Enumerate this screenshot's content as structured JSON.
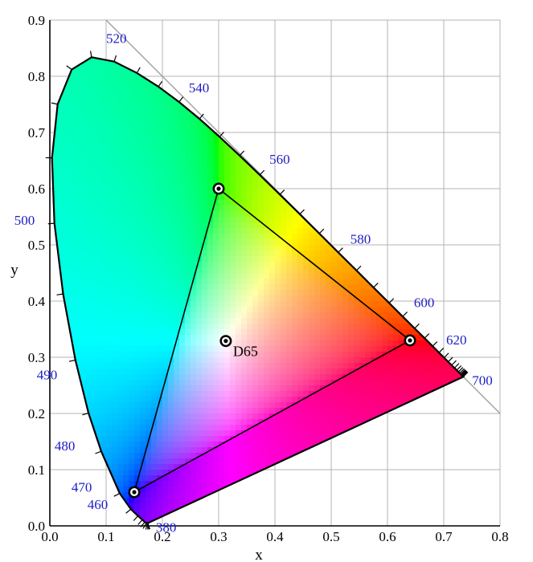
{
  "chart_data": {
    "type": "scatter",
    "title": "",
    "xlabel": "x",
    "ylabel": "y",
    "xlim": [
      0.0,
      0.8
    ],
    "ylim": [
      0.0,
      0.9
    ],
    "xticks": [
      "0.0",
      "0.1",
      "0.2",
      "0.3",
      "0.4",
      "0.5",
      "0.6",
      "0.7",
      "0.8"
    ],
    "yticks": [
      "0.0",
      "0.1",
      "0.2",
      "0.3",
      "0.4",
      "0.5",
      "0.6",
      "0.7",
      "0.8",
      "0.9"
    ],
    "grid": true,
    "wavelength_label_color": "#1c1cc8",
    "spectral_locus": [
      [
        0.1741,
        0.005
      ],
      [
        0.1738,
        0.0049
      ],
      [
        0.1733,
        0.0048
      ],
      [
        0.1726,
        0.0048
      ],
      [
        0.1714,
        0.0051
      ],
      [
        0.1689,
        0.0069
      ],
      [
        0.1644,
        0.0109
      ],
      [
        0.1566,
        0.0177
      ],
      [
        0.144,
        0.0297
      ],
      [
        0.1241,
        0.0578
      ],
      [
        0.0913,
        0.1327
      ],
      [
        0.0687,
        0.2007
      ],
      [
        0.0454,
        0.295
      ],
      [
        0.0235,
        0.4127
      ],
      [
        0.0082,
        0.5384
      ],
      [
        0.0039,
        0.6548
      ],
      [
        0.0139,
        0.7502
      ],
      [
        0.0389,
        0.812
      ],
      [
        0.0743,
        0.8338
      ],
      [
        0.1142,
        0.8262
      ],
      [
        0.1547,
        0.8059
      ],
      [
        0.1929,
        0.7816
      ],
      [
        0.2296,
        0.7543
      ],
      [
        0.2658,
        0.7243
      ],
      [
        0.3016,
        0.6923
      ],
      [
        0.3373,
        0.6589
      ],
      [
        0.3731,
        0.6245
      ],
      [
        0.4087,
        0.5896
      ],
      [
        0.4441,
        0.5547
      ],
      [
        0.4788,
        0.5202
      ],
      [
        0.5125,
        0.4866
      ],
      [
        0.5448,
        0.4544
      ],
      [
        0.5752,
        0.4242
      ],
      [
        0.6029,
        0.3965
      ],
      [
        0.627,
        0.3725
      ],
      [
        0.6482,
        0.3514
      ],
      [
        0.6658,
        0.334
      ],
      [
        0.6801,
        0.3197
      ],
      [
        0.6915,
        0.3083
      ],
      [
        0.7006,
        0.2993
      ],
      [
        0.7079,
        0.292
      ],
      [
        0.714,
        0.2859
      ],
      [
        0.719,
        0.2809
      ],
      [
        0.723,
        0.277
      ],
      [
        0.726,
        0.274
      ],
      [
        0.7283,
        0.2717
      ],
      [
        0.73,
        0.27
      ],
      [
        0.7311,
        0.2689
      ],
      [
        0.732,
        0.268
      ],
      [
        0.7327,
        0.2673
      ],
      [
        0.7334,
        0.2666
      ],
      [
        0.734,
        0.266
      ],
      [
        0.7344,
        0.2656
      ],
      [
        0.7346,
        0.2654
      ],
      [
        0.7347,
        0.2653
      ]
    ],
    "wavelength_labels": [
      {
        "text": "380",
        "x": 0.1741,
        "y": 0.005
      },
      {
        "text": "460",
        "x": 0.144,
        "y": 0.0297
      },
      {
        "text": "470",
        "x": 0.1241,
        "y": 0.0578
      },
      {
        "text": "480",
        "x": 0.0913,
        "y": 0.1327
      },
      {
        "text": "490",
        "x": 0.0454,
        "y": 0.295
      },
      {
        "text": "500",
        "x": 0.0082,
        "y": 0.5384
      },
      {
        "text": "520",
        "x": 0.0743,
        "y": 0.8338
      },
      {
        "text": "540",
        "x": 0.2296,
        "y": 0.7543
      },
      {
        "text": "560",
        "x": 0.3731,
        "y": 0.6245
      },
      {
        "text": "580",
        "x": 0.5125,
        "y": 0.4866
      },
      {
        "text": "600",
        "x": 0.627,
        "y": 0.3725
      },
      {
        "text": "620",
        "x": 0.6915,
        "y": 0.3083
      },
      {
        "text": "700",
        "x": 0.7347,
        "y": 0.2653
      }
    ],
    "gamut_triangle": [
      {
        "x": 0.64,
        "y": 0.33
      },
      {
        "x": 0.3,
        "y": 0.6
      },
      {
        "x": 0.15,
        "y": 0.06
      }
    ],
    "white_point": {
      "label": "D65",
      "x": 0.3127,
      "y": 0.329
    }
  }
}
